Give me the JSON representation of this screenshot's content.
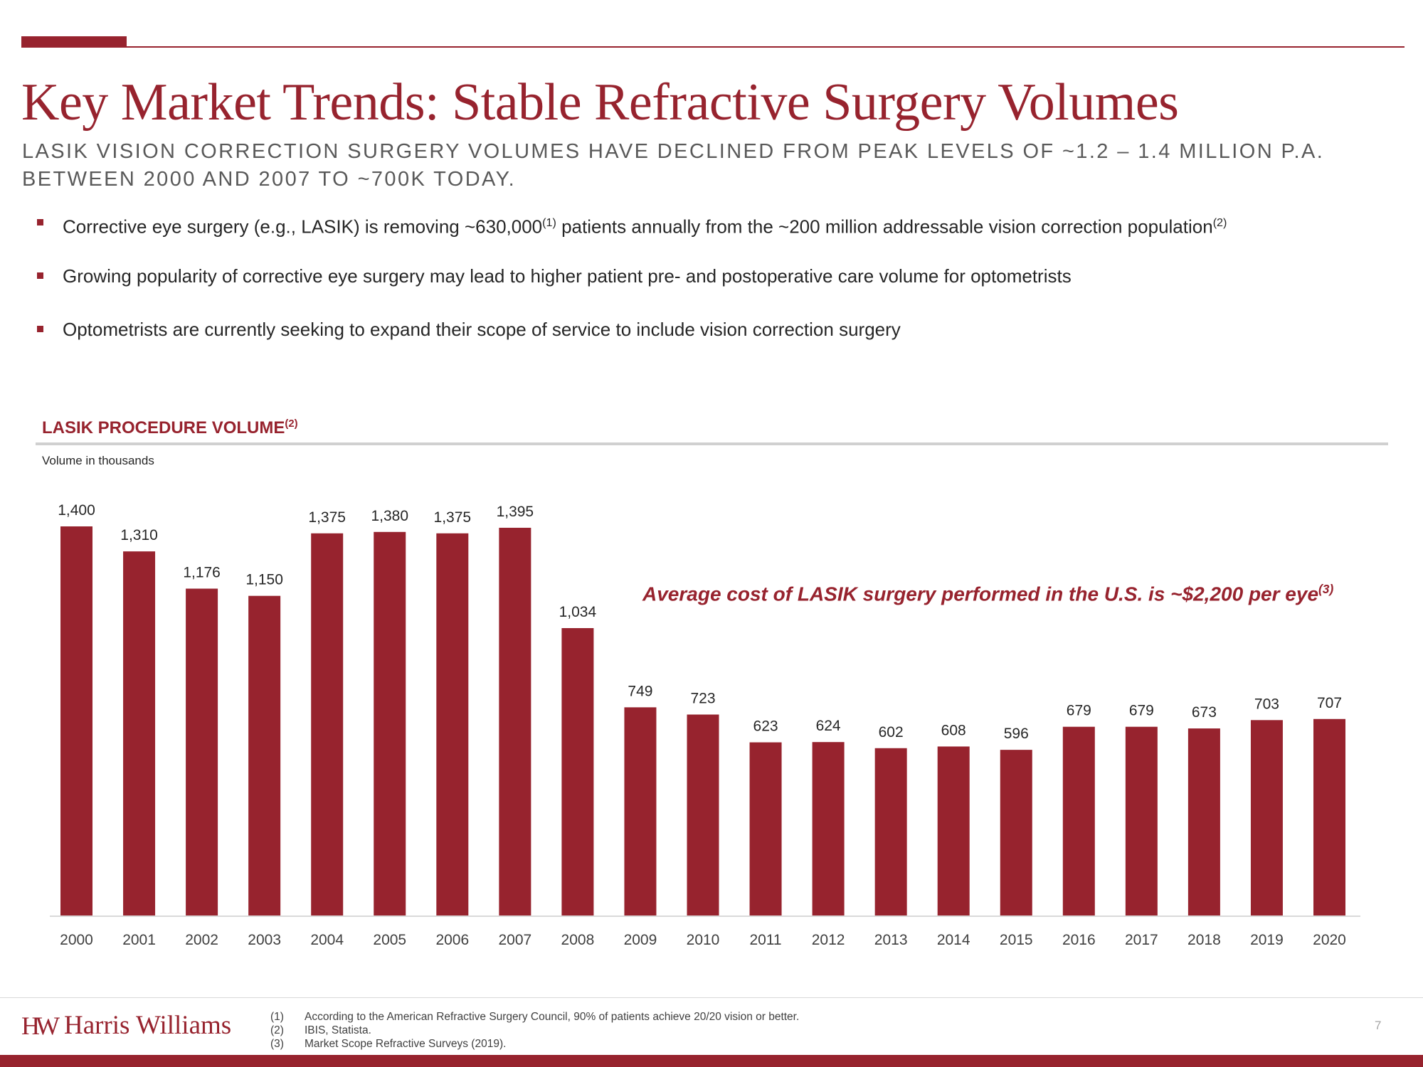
{
  "title": "Key Market Trends: Stable Refractive Surgery Volumes",
  "subtitle": "LASIK VISION CORRECTION SURGERY VOLUMES HAVE DECLINED FROM PEAK LEVELS OF ~1.2 – 1.4 MILLION P.A. BETWEEN 2000 AND 2007 TO ~700K TODAY.",
  "bullets": {
    "b1_text": "Corrective eye surgery (e.g., LASIK) is removing ~630,000",
    "b1_sup1": "(1)",
    "b1_text2": " patients annually from the ~200 million addressable vision correction population",
    "b1_sup2": "(2)",
    "b2_text": "Growing popularity of corrective eye surgery may lead to higher patient pre- and postoperative care volume for optometrists",
    "b3_text": "Optometrists are currently seeking to expand their scope of service to include vision correction surgery"
  },
  "section": {
    "heading": "LASIK PROCEDURE VOLUME",
    "heading_sup": "(2)",
    "unit_note": "Volume in thousands"
  },
  "callout": {
    "text": "Average cost of LASIK surgery performed in the U.S. is ~$2,200 per eye",
    "sup": "(3)"
  },
  "chart_data": {
    "type": "bar",
    "title": "LASIK PROCEDURE VOLUME",
    "ylabel": "Volume in thousands",
    "xlabel": "",
    "categories": [
      "2000",
      "2001",
      "2002",
      "2003",
      "2004",
      "2005",
      "2006",
      "2007",
      "2008",
      "2009",
      "2010",
      "2011",
      "2012",
      "2013",
      "2014",
      "2015",
      "2016",
      "2017",
      "2018",
      "2019",
      "2020"
    ],
    "values": [
      1400,
      1310,
      1176,
      1150,
      1375,
      1380,
      1375,
      1395,
      1034,
      749,
      723,
      623,
      624,
      602,
      608,
      596,
      679,
      679,
      673,
      703,
      707
    ],
    "labels": [
      "1,400",
      "1,310",
      "1,176",
      "1,150",
      "1,375",
      "1,380",
      "1,375",
      "1,395",
      "1,034",
      "749",
      "723",
      "623",
      "624",
      "602",
      "608",
      "596",
      "679",
      "679",
      "673",
      "703",
      "707"
    ],
    "ylim": [
      0,
      1400
    ],
    "grid": false,
    "bar_color": "#97232e"
  },
  "footer": {
    "logo_mark": "HW",
    "logo_text": "Harris Williams",
    "page_number": "7",
    "footnotes": [
      {
        "num": "(1)",
        "text": "According to the American Refractive Surgery Council, 90% of patients achieve 20/20 vision or better."
      },
      {
        "num": "(2)",
        "text": "IBIS, Statista."
      },
      {
        "num": "(3)",
        "text": "Market Scope Refractive Surveys (2019)."
      }
    ]
  },
  "colors": {
    "brand": "#97232e",
    "text": "#262626",
    "muted": "#595959"
  }
}
